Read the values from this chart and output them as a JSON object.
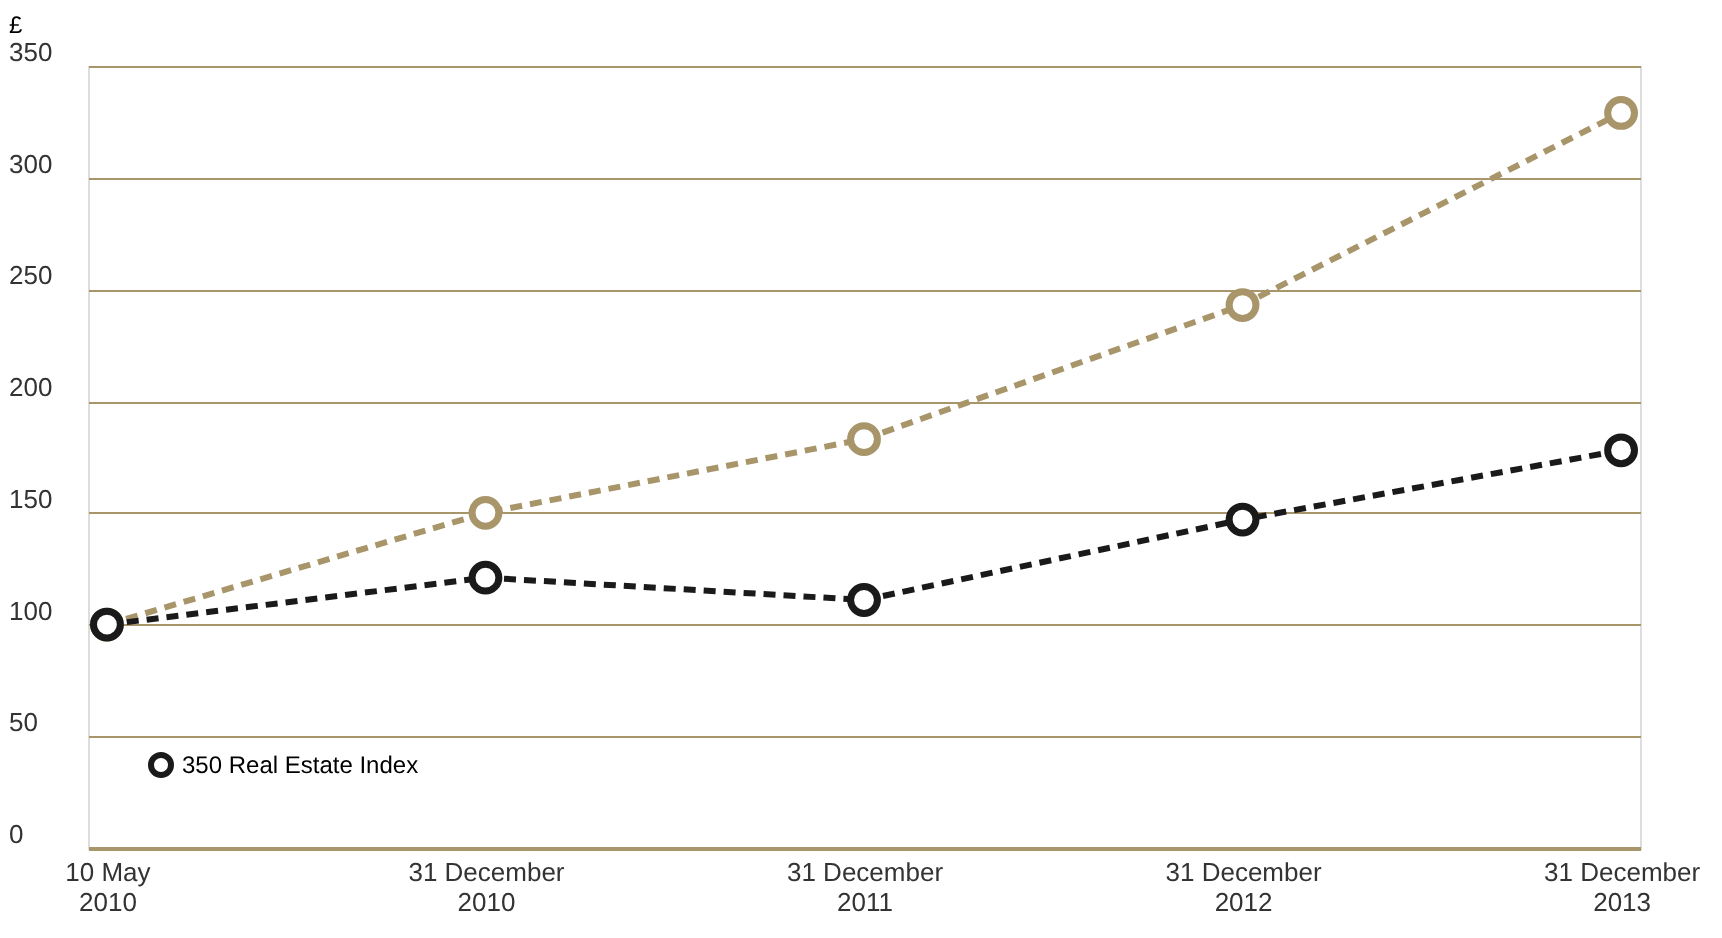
{
  "chart_data": {
    "type": "line",
    "ylabel": "£",
    "categories": [
      "10 May 2010",
      "31 December 2010",
      "31 December 2011",
      "31 December 2012",
      "31 December 2013"
    ],
    "series": [
      {
        "color": "#a8956a",
        "values": [
          100,
          150,
          183,
          243,
          329
        ]
      },
      {
        "name": "350 Real Estate Index",
        "color": "#1a1a1a",
        "values": [
          100,
          121,
          111,
          147,
          178
        ]
      }
    ],
    "ylim": [
      0,
      350
    ],
    "yticks": [
      0,
      50,
      100,
      150,
      200,
      250,
      300,
      350
    ],
    "grid": "y",
    "legend": "bottom left",
    "marker": "circle",
    "line_style": "dashed"
  }
}
